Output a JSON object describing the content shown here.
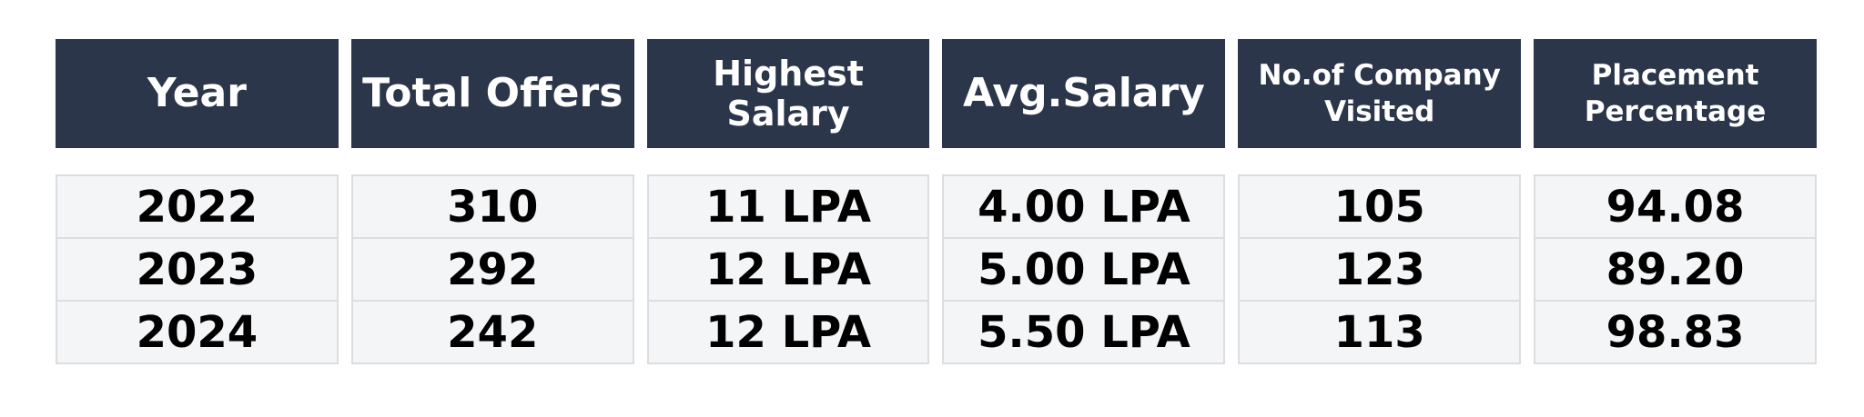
{
  "table": {
    "headers": [
      "Year",
      "Total Offers",
      "Highest Salary",
      "Avg.Salary",
      "No.of Company Visited",
      "Placement Percentage"
    ],
    "rows": [
      [
        "2022",
        "310",
        "11 LPA",
        "4.00 LPA",
        "105",
        "94.08"
      ],
      [
        "2023",
        "292",
        "12 LPA",
        "5.00 LPA",
        "123",
        "89.20"
      ],
      [
        "2024",
        "242",
        "12 LPA",
        "5.50 LPA",
        "113",
        "98.83"
      ]
    ]
  }
}
